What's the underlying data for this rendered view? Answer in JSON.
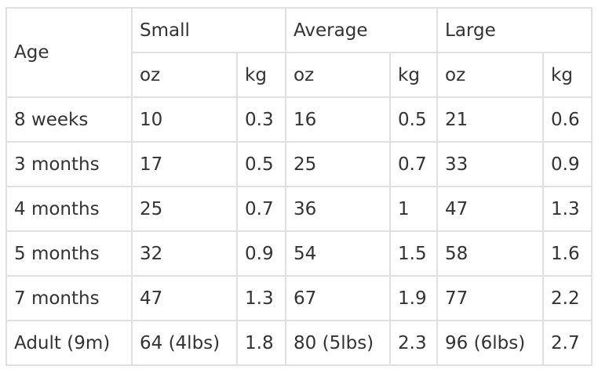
{
  "table": {
    "age_header": "Age",
    "groups": [
      "Small",
      "Average",
      "Large"
    ],
    "units": [
      "oz",
      "kg",
      "oz",
      "kg",
      "oz",
      "kg"
    ],
    "rows": [
      [
        "8 weeks",
        "10",
        "0.3",
        "16",
        "0.5",
        "21",
        "0.6"
      ],
      [
        "3 months",
        "17",
        "0.5",
        "25",
        "0.7",
        "33",
        "0.9"
      ],
      [
        "4 months",
        "25",
        "0.7",
        "36",
        "1",
        "47",
        "1.3"
      ],
      [
        "5 months",
        "32",
        "0.9",
        "54",
        "1.5",
        "58",
        "1.6"
      ],
      [
        "7 months",
        "47",
        "1.3",
        "67",
        "1.9",
        "77",
        "2.2"
      ],
      [
        "Adult (9m)",
        "64 (4lbs)",
        "1.8",
        "80 (5lbs)",
        "2.3",
        "96 (6lbs)",
        "2.7"
      ]
    ]
  }
}
